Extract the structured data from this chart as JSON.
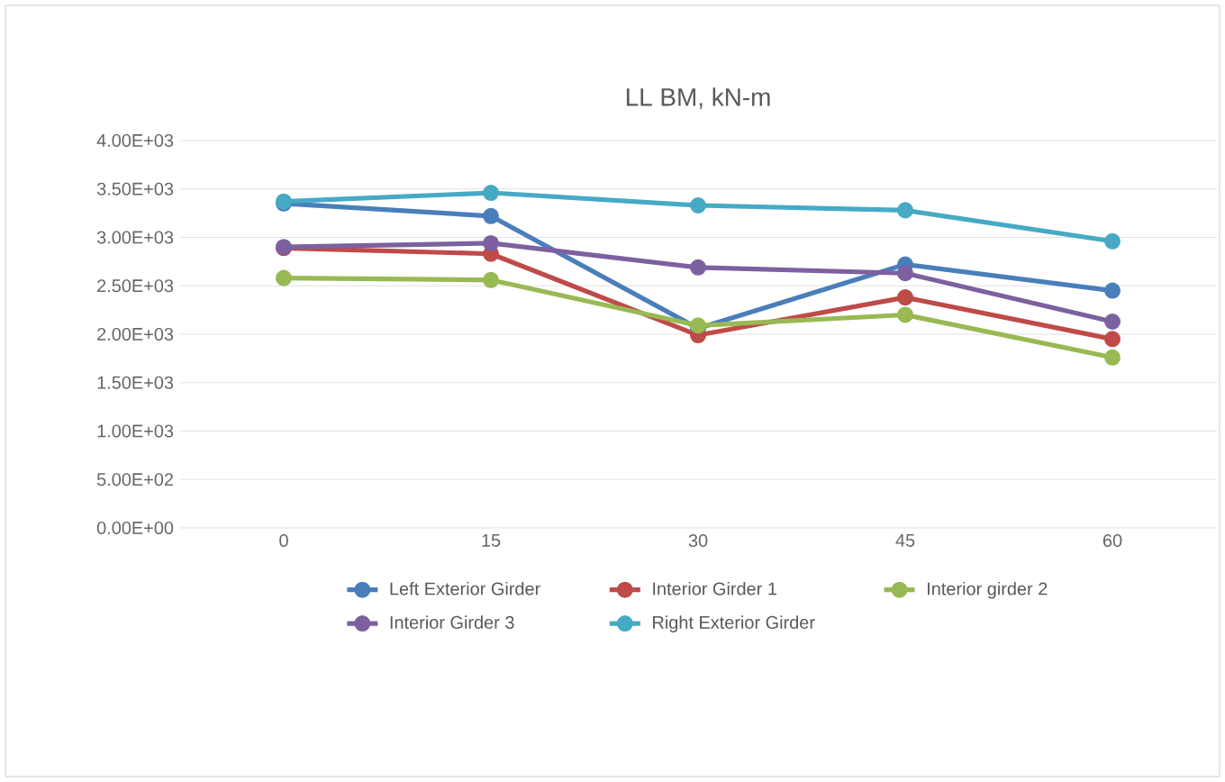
{
  "chart_data": {
    "type": "line",
    "title": "LL BM, kN-m",
    "categories": [
      "0",
      "15",
      "30",
      "45",
      "60"
    ],
    "series": [
      {
        "name": "Left Exterior Girder",
        "color": "#4a7ebb",
        "values": [
          3350,
          3220,
          2060,
          2720,
          2450
        ]
      },
      {
        "name": "Interior Girder 1",
        "color": "#be4b48",
        "values": [
          2890,
          2830,
          1990,
          2380,
          1950
        ]
      },
      {
        "name": "Interior girder 2",
        "color": "#98b954",
        "values": [
          2580,
          2560,
          2090,
          2200,
          1760
        ]
      },
      {
        "name": "Interior Girder 3",
        "color": "#7d60a0",
        "values": [
          2900,
          2940,
          2690,
          2630,
          2130
        ]
      },
      {
        "name": "Right Exterior Girder",
        "color": "#46aac5",
        "values": [
          3370,
          3460,
          3330,
          3280,
          2960
        ]
      }
    ],
    "ylim": [
      0,
      4000
    ],
    "yticks": [
      {
        "value": 0,
        "label": "0.00E+00"
      },
      {
        "value": 500,
        "label": "5.00E+02"
      },
      {
        "value": 1000,
        "label": "1.00E+03"
      },
      {
        "value": 1500,
        "label": "1.50E+03"
      },
      {
        "value": 2000,
        "label": "2.00E+03"
      },
      {
        "value": 2500,
        "label": "2.50E+03"
      },
      {
        "value": 3000,
        "label": "3.00E+03"
      },
      {
        "value": 3500,
        "label": "3.50E+03"
      },
      {
        "value": 4000,
        "label": "4.00E+03"
      }
    ],
    "grid": "y",
    "legend": "bottom",
    "marker": "circle",
    "line_style": "solid"
  }
}
